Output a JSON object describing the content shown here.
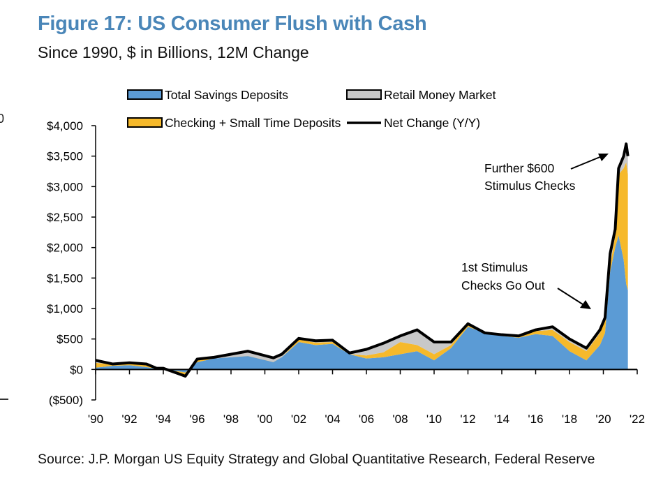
{
  "title": "Figure 17: US Consumer Flush with Cash",
  "subtitle": "Since 1990, $ in Billions, 12M Change",
  "source": "Source: J.P. Morgan US Equity Strategy and Global Quantitative Research, Federal Reserve",
  "crop_fragment": "0",
  "chart_data": {
    "type": "area",
    "stacked": true,
    "xlabel": "",
    "ylabel": "",
    "xlim": [
      1990,
      2022
    ],
    "ylim": [
      -500,
      4000
    ],
    "grid": false,
    "legend_position": "top",
    "y_ticks": [
      4000,
      3500,
      3000,
      2500,
      2000,
      1500,
      1000,
      500,
      0,
      -500
    ],
    "y_tick_labels": [
      "$4,000",
      "$3,500",
      "$3,000",
      "$2,500",
      "$2,000",
      "$1,500",
      "$1,000",
      "$500",
      "$0",
      "($500)"
    ],
    "x_ticks": [
      1990,
      1992,
      1994,
      1996,
      1998,
      2000,
      2002,
      2004,
      2006,
      2008,
      2010,
      2012,
      2014,
      2016,
      2018,
      2020,
      2022
    ],
    "x_tick_labels": [
      "'90",
      "'92",
      "'94",
      "'96",
      "'98",
      "'00",
      "'02",
      "'04",
      "'06",
      "'08",
      "'10",
      "'12",
      "'14",
      "'16",
      "'18",
      "'20",
      "'22"
    ],
    "x": [
      1990,
      1991,
      1992,
      1993,
      1993.6,
      1994,
      1995.3,
      1996,
      1997,
      1998,
      1999,
      2000.5,
      2001,
      2002,
      2003,
      2004,
      2005,
      2006,
      2007,
      2008,
      2009,
      2010,
      2011,
      2012,
      2013,
      2014,
      2015,
      2016,
      2017,
      2018,
      2019,
      2019.8,
      2020.1,
      2020.4,
      2020.7,
      2020.9,
      2021.2,
      2021.35,
      2021.45
    ],
    "series": [
      {
        "name": "Total Savings Deposits",
        "color": "#5b9bd5",
        "values": [
          30,
          60,
          70,
          40,
          10,
          10,
          -50,
          120,
          180,
          200,
          230,
          140,
          200,
          450,
          400,
          420,
          250,
          180,
          200,
          250,
          300,
          150,
          350,
          700,
          600,
          550,
          520,
          580,
          550,
          300,
          150,
          400,
          600,
          1600,
          2000,
          2200,
          1800,
          1400,
          1300
        ]
      },
      {
        "name": "Checking + Small Time Deposits",
        "color": "#f6b92b",
        "values": [
          80,
          20,
          40,
          60,
          10,
          0,
          -60,
          30,
          0,
          0,
          -10,
          -20,
          0,
          40,
          40,
          30,
          0,
          50,
          80,
          200,
          100,
          100,
          50,
          50,
          0,
          20,
          30,
          50,
          100,
          150,
          150,
          200,
          200,
          100,
          200,
          1000,
          1500,
          2000,
          1900
        ]
      },
      {
        "name": "Retail Money Market",
        "color": "#c8c8c8",
        "values": [
          40,
          10,
          0,
          -10,
          0,
          10,
          0,
          20,
          20,
          50,
          80,
          70,
          50,
          20,
          30,
          30,
          20,
          100,
          150,
          100,
          250,
          200,
          50,
          0,
          0,
          0,
          0,
          20,
          50,
          50,
          50,
          50,
          50,
          200,
          100,
          100,
          200,
          300,
          300
        ]
      }
    ],
    "net_change": {
      "name": "Net Change (Y/Y)",
      "color": "#000000"
    },
    "annotations": [
      {
        "text_lines": [
          "Further $600",
          "Stimulus Checks"
        ],
        "points_to": "2021 peak"
      },
      {
        "text_lines": [
          "1st Stimulus",
          "Checks Go Out"
        ],
        "points_to": "early 2020"
      }
    ]
  }
}
